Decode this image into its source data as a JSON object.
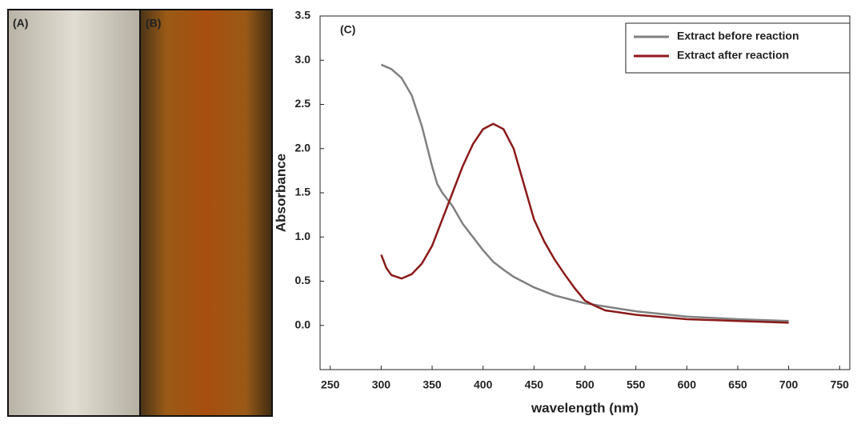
{
  "photo_labels": [
    "(A)",
    "(B)"
  ],
  "chart_data": {
    "type": "line",
    "panel_label": "(C)",
    "x_label": "wavelength (nm)",
    "y_label": "Absorbance",
    "xlim": [
      240,
      760
    ],
    "ylim": [
      -0.5,
      3.5
    ],
    "xticks": [
      250,
      300,
      350,
      400,
      450,
      500,
      550,
      600,
      650,
      700,
      750
    ],
    "yticks": [
      {
        "value": 0,
        "label": "0.0"
      },
      0.5,
      {
        "value": 1,
        "label": "1.0"
      },
      1.5,
      {
        "value": 2,
        "label": "2.0"
      },
      2.5,
      {
        "value": 3,
        "label": "3.0"
      },
      3.5
    ],
    "legend": "upper right",
    "series": [
      {
        "name": "Extract before reaction",
        "color": "#808080",
        "x": [
          300,
          310,
          320,
          330,
          340,
          350,
          355,
          360,
          370,
          380,
          390,
          400,
          410,
          420,
          430,
          450,
          470,
          500,
          550,
          600,
          650,
          700
        ],
        "values": [
          2.95,
          2.9,
          2.8,
          2.6,
          2.25,
          1.8,
          1.6,
          1.5,
          1.35,
          1.15,
          1.0,
          0.85,
          0.72,
          0.63,
          0.55,
          0.43,
          0.34,
          0.25,
          0.16,
          0.1,
          0.07,
          0.05
        ]
      },
      {
        "name": "Extract after reaction",
        "color": "#8b1a1a",
        "x": [
          300,
          305,
          310,
          320,
          330,
          340,
          350,
          360,
          370,
          380,
          390,
          400,
          410,
          420,
          430,
          440,
          450,
          460,
          470,
          480,
          490,
          500,
          510,
          520,
          550,
          600,
          650,
          700
        ],
        "values": [
          0.8,
          0.65,
          0.57,
          0.53,
          0.58,
          0.7,
          0.9,
          1.2,
          1.5,
          1.8,
          2.05,
          2.22,
          2.28,
          2.22,
          2.0,
          1.6,
          1.2,
          0.95,
          0.75,
          0.58,
          0.42,
          0.28,
          0.22,
          0.17,
          0.12,
          0.07,
          0.05,
          0.03
        ]
      }
    ]
  }
}
